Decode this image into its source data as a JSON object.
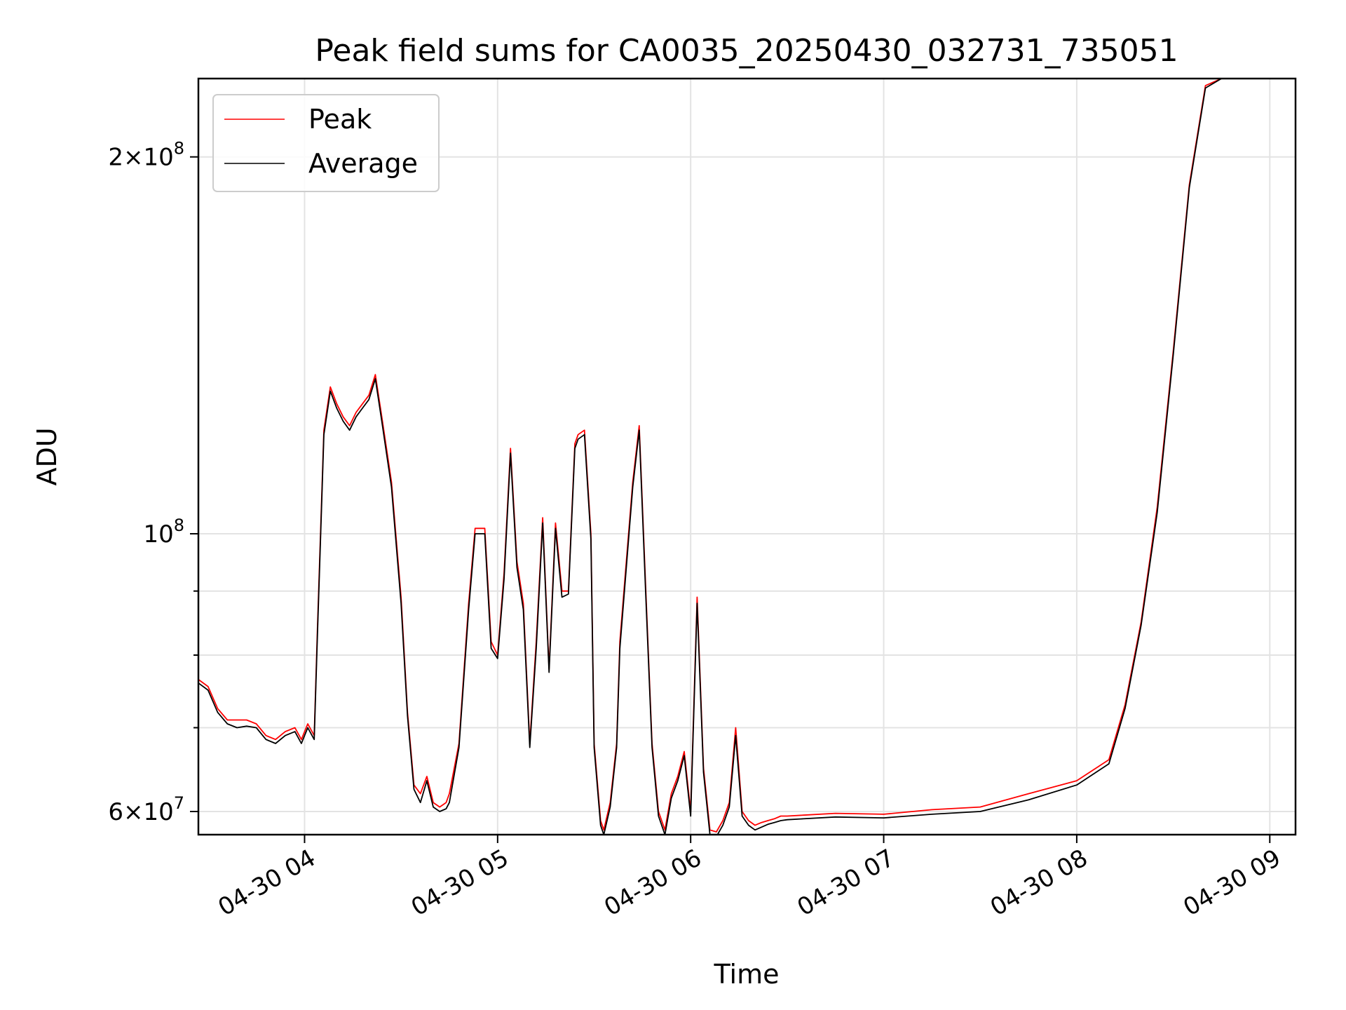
{
  "chart_data": {
    "type": "line",
    "title": "Peak field sums for CA0035_20250430_032731_735051",
    "xlabel": "Time",
    "ylabel": "ADU",
    "y_scale": "log",
    "grid": true,
    "legend_position": "upper-left",
    "xlim": [
      "2025-04-30 03:27",
      "2025-04-30 09:08"
    ],
    "ylim": [
      57500000,
      231000000
    ],
    "x_ticks": [
      {
        "value": "2025-04-30 04:00",
        "label": "04-30 04"
      },
      {
        "value": "2025-04-30 05:00",
        "label": "04-30 05"
      },
      {
        "value": "2025-04-30 06:00",
        "label": "04-30 06"
      },
      {
        "value": "2025-04-30 07:00",
        "label": "04-30 07"
      },
      {
        "value": "2025-04-30 08:00",
        "label": "04-30 08"
      },
      {
        "value": "2025-04-30 09:00",
        "label": "04-30 09"
      }
    ],
    "y_ticks": [
      {
        "value": 60000000,
        "base": "6",
        "exp": "7"
      },
      {
        "value": 100000000,
        "base": "",
        "exp": "8"
      },
      {
        "value": 200000000,
        "base": "2",
        "exp": "8"
      }
    ],
    "y_minor_ticks": [
      70000000,
      80000000,
      90000000
    ],
    "series": [
      {
        "name": "Peak",
        "color": "#ff0000",
        "x": [
          "2025-04-30 03:27",
          "2025-04-30 03:30",
          "2025-04-30 03:33",
          "2025-04-30 03:36",
          "2025-04-30 03:39",
          "2025-04-30 03:42",
          "2025-04-30 03:45",
          "2025-04-30 03:48",
          "2025-04-30 03:51",
          "2025-04-30 03:54",
          "2025-04-30 03:57",
          "2025-04-30 03:59",
          "2025-04-30 04:01",
          "2025-04-30 04:03",
          "2025-04-30 04:04",
          "2025-04-30 04:06",
          "2025-04-30 04:08",
          "2025-04-30 04:10",
          "2025-04-30 04:12",
          "2025-04-30 04:14",
          "2025-04-30 04:16",
          "2025-04-30 04:18",
          "2025-04-30 04:20",
          "2025-04-30 04:22",
          "2025-04-30 04:24",
          "2025-04-30 04:27",
          "2025-04-30 04:30",
          "2025-04-30 04:32",
          "2025-04-30 04:34",
          "2025-04-30 04:36",
          "2025-04-30 04:38",
          "2025-04-30 04:40",
          "2025-04-30 04:42",
          "2025-04-30 04:44",
          "2025-04-30 04:45",
          "2025-04-30 04:48",
          "2025-04-30 04:51",
          "2025-04-30 04:53",
          "2025-04-30 04:56",
          "2025-04-30 04:58",
          "2025-04-30 05:00",
          "2025-04-30 05:02",
          "2025-04-30 05:04",
          "2025-04-30 05:06",
          "2025-04-30 05:08",
          "2025-04-30 05:10",
          "2025-04-30 05:12",
          "2025-04-30 05:14",
          "2025-04-30 05:16",
          "2025-04-30 05:18",
          "2025-04-30 05:20",
          "2025-04-30 05:22",
          "2025-04-30 05:24",
          "2025-04-30 05:25",
          "2025-04-30 05:27",
          "2025-04-30 05:29",
          "2025-04-30 05:30",
          "2025-04-30 05:32",
          "2025-04-30 05:33",
          "2025-04-30 05:35",
          "2025-04-30 05:37",
          "2025-04-30 05:38",
          "2025-04-30 05:40",
          "2025-04-30 05:42",
          "2025-04-30 05:44",
          "2025-04-30 05:46",
          "2025-04-30 05:48",
          "2025-04-30 05:50",
          "2025-04-30 05:52",
          "2025-04-30 05:54",
          "2025-04-30 05:56",
          "2025-04-30 05:58",
          "2025-04-30 06:00",
          "2025-04-30 06:02",
          "2025-04-30 06:04",
          "2025-04-30 06:06",
          "2025-04-30 06:08",
          "2025-04-30 06:10",
          "2025-04-30 06:12",
          "2025-04-30 06:14",
          "2025-04-30 06:16",
          "2025-04-30 06:18",
          "2025-04-30 06:20",
          "2025-04-30 06:22",
          "2025-04-30 06:24",
          "2025-04-30 06:26",
          "2025-04-30 06:28",
          "2025-04-30 06:30",
          "2025-04-30 06:35",
          "2025-04-30 06:45",
          "2025-04-30 07:00",
          "2025-04-30 07:15",
          "2025-04-30 07:30",
          "2025-04-30 07:45",
          "2025-04-30 08:00",
          "2025-04-30 08:10",
          "2025-04-30 08:15",
          "2025-04-30 08:20",
          "2025-04-30 08:25",
          "2025-04-30 08:30",
          "2025-04-30 08:35",
          "2025-04-30 08:40",
          "2025-04-30 08:45",
          "2025-04-30 08:50",
          "2025-04-30 08:53",
          "2025-04-30 08:56",
          "2025-04-30 08:58"
        ],
        "y": [
          76500000,
          75500000,
          72500000,
          71000000,
          71000000,
          71000000,
          70500000,
          69000000,
          68500000,
          69500000,
          70000000,
          68500000,
          70500000,
          69000000,
          84000000,
          121000000,
          131000000,
          127000000,
          124000000,
          122000000,
          125000000,
          127000000,
          129000000,
          134000000,
          124000000,
          110000000,
          89000000,
          72000000,
          63000000,
          62000000,
          64000000,
          61000000,
          60500000,
          61000000,
          62000000,
          68000000,
          88000000,
          101000000,
          101000000,
          82000000,
          80000000,
          93000000,
          117000000,
          95000000,
          88000000,
          68000000,
          82000000,
          103000000,
          78000000,
          102000000,
          90000000,
          90000000,
          118000000,
          120000000,
          121000000,
          100000000,
          68000000,
          59000000,
          58000000,
          61000000,
          68000000,
          82000000,
          95000000,
          110000000,
          122000000,
          91000000,
          68000000,
          60000000,
          58000000,
          62000000,
          64000000,
          67000000,
          60000000,
          89000000,
          65000000,
          58000000,
          57800000,
          59000000,
          61000000,
          70000000,
          60000000,
          59000000,
          58500000,
          58800000,
          59000000,
          59200000,
          59500000,
          59500000,
          59600000,
          59800000,
          59700000,
          60200000,
          60500000,
          62000000,
          63500000,
          66000000,
          73000000,
          85000000,
          105000000,
          140000000,
          190000000,
          228000000,
          231000000,
          231000000,
          231000000,
          231000000,
          231000000
        ]
      },
      {
        "name": "Average",
        "color": "#000000",
        "x": [
          "2025-04-30 03:27",
          "2025-04-30 03:30",
          "2025-04-30 03:33",
          "2025-04-30 03:36",
          "2025-04-30 03:39",
          "2025-04-30 03:42",
          "2025-04-30 03:45",
          "2025-04-30 03:48",
          "2025-04-30 03:51",
          "2025-04-30 03:54",
          "2025-04-30 03:57",
          "2025-04-30 03:59",
          "2025-04-30 04:01",
          "2025-04-30 04:03",
          "2025-04-30 04:04",
          "2025-04-30 04:06",
          "2025-04-30 04:08",
          "2025-04-30 04:10",
          "2025-04-30 04:12",
          "2025-04-30 04:14",
          "2025-04-30 04:16",
          "2025-04-30 04:18",
          "2025-04-30 04:20",
          "2025-04-30 04:22",
          "2025-04-30 04:24",
          "2025-04-30 04:27",
          "2025-04-30 04:30",
          "2025-04-30 04:32",
          "2025-04-30 04:34",
          "2025-04-30 04:36",
          "2025-04-30 04:38",
          "2025-04-30 04:40",
          "2025-04-30 04:42",
          "2025-04-30 04:44",
          "2025-04-30 04:45",
          "2025-04-30 04:48",
          "2025-04-30 04:51",
          "2025-04-30 04:53",
          "2025-04-30 04:56",
          "2025-04-30 04:58",
          "2025-04-30 05:00",
          "2025-04-30 05:02",
          "2025-04-30 05:04",
          "2025-04-30 05:06",
          "2025-04-30 05:08",
          "2025-04-30 05:10",
          "2025-04-30 05:12",
          "2025-04-30 05:14",
          "2025-04-30 05:16",
          "2025-04-30 05:18",
          "2025-04-30 05:20",
          "2025-04-30 05:22",
          "2025-04-30 05:24",
          "2025-04-30 05:25",
          "2025-04-30 05:27",
          "2025-04-30 05:29",
          "2025-04-30 05:30",
          "2025-04-30 05:32",
          "2025-04-30 05:33",
          "2025-04-30 05:35",
          "2025-04-30 05:37",
          "2025-04-30 05:38",
          "2025-04-30 05:40",
          "2025-04-30 05:42",
          "2025-04-30 05:44",
          "2025-04-30 05:46",
          "2025-04-30 05:48",
          "2025-04-30 05:50",
          "2025-04-30 05:52",
          "2025-04-30 05:54",
          "2025-04-30 05:56",
          "2025-04-30 05:58",
          "2025-04-30 06:00",
          "2025-04-30 06:02",
          "2025-04-30 06:04",
          "2025-04-30 06:06",
          "2025-04-30 06:08",
          "2025-04-30 06:10",
          "2025-04-30 06:12",
          "2025-04-30 06:14",
          "2025-04-30 06:16",
          "2025-04-30 06:18",
          "2025-04-30 06:20",
          "2025-04-30 06:22",
          "2025-04-30 06:24",
          "2025-04-30 06:26",
          "2025-04-30 06:28",
          "2025-04-30 06:30",
          "2025-04-30 06:35",
          "2025-04-30 06:45",
          "2025-04-30 07:00",
          "2025-04-30 07:15",
          "2025-04-30 07:30",
          "2025-04-30 07:45",
          "2025-04-30 08:00",
          "2025-04-30 08:10",
          "2025-04-30 08:15",
          "2025-04-30 08:20",
          "2025-04-30 08:25",
          "2025-04-30 08:30",
          "2025-04-30 08:35",
          "2025-04-30 08:40",
          "2025-04-30 08:45",
          "2025-04-30 08:50",
          "2025-04-30 08:53",
          "2025-04-30 08:56",
          "2025-04-30 08:58"
        ],
        "y": [
          76000000,
          75000000,
          72000000,
          70500000,
          70000000,
          70200000,
          70000000,
          68500000,
          68000000,
          69000000,
          69500000,
          68000000,
          70000000,
          68500000,
          83000000,
          120000000,
          130000000,
          126000000,
          123000000,
          121000000,
          124000000,
          126000000,
          128000000,
          133000000,
          123000000,
          109000000,
          88000000,
          71500000,
          62500000,
          61000000,
          63500000,
          60500000,
          60000000,
          60300000,
          61000000,
          67500000,
          87000000,
          100000000,
          100000000,
          81000000,
          79500000,
          92000000,
          116000000,
          94000000,
          87000000,
          67500000,
          81000000,
          102000000,
          77500000,
          101000000,
          89000000,
          89500000,
          117000000,
          119000000,
          120000000,
          99000000,
          67500000,
          58500000,
          57500000,
          60500000,
          67500000,
          81000000,
          94000000,
          109000000,
          121000000,
          90000000,
          67500000,
          59500000,
          57500000,
          61500000,
          63500000,
          66500000,
          59500000,
          88000000,
          64500000,
          57500000,
          57300000,
          58500000,
          60500000,
          69000000,
          59500000,
          58500000,
          58000000,
          58300000,
          58600000,
          58800000,
          59000000,
          59100000,
          59200000,
          59400000,
          59300000,
          59700000,
          60000000,
          61300000,
          63000000,
          65500000,
          72500000,
          84500000,
          104000000,
          139000000,
          189000000,
          227000000,
          231000000,
          231000000,
          231000000,
          231000000,
          231000000
        ]
      }
    ]
  }
}
